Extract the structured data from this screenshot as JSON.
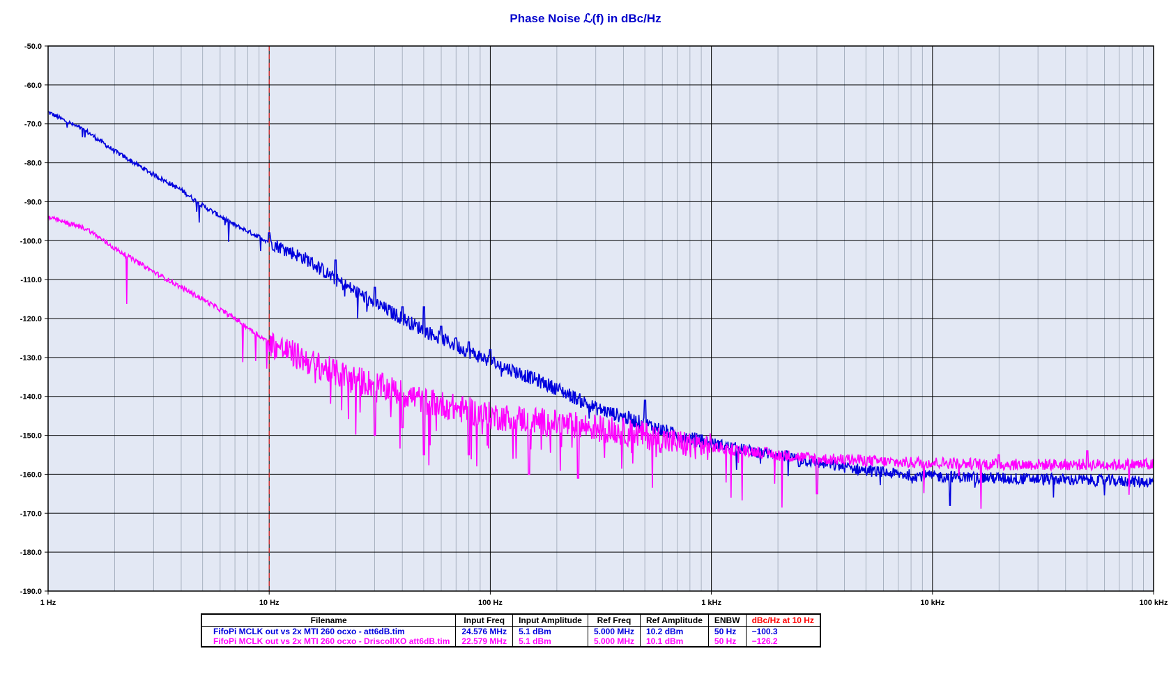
{
  "chart_data": {
    "type": "line",
    "title": "Phase Noise ℒ(f) in dBc/Hz",
    "x_scale": "log",
    "xlim": [
      1,
      100000
    ],
    "ylim": [
      -190,
      -50
    ],
    "y_ticks": [
      -50,
      -60,
      -70,
      -80,
      -90,
      -100,
      -110,
      -120,
      -130,
      -140,
      -150,
      -160,
      -170,
      -180,
      -190
    ],
    "y_tick_labels": [
      "-50.0",
      "-60.0",
      "-70.0",
      "-80.0",
      "-90.0",
      "-100.0",
      "-110.0",
      "-120.0",
      "-130.0",
      "-140.0",
      "-150.0",
      "-160.0",
      "-170.0",
      "-180.0",
      "-190.0"
    ],
    "x_ticks": [
      1,
      10,
      100,
      1000,
      10000,
      100000
    ],
    "x_tick_labels": [
      "1 Hz",
      "10 Hz",
      "100 Hz",
      "1 kHz",
      "10 kHz",
      "100 kHz"
    ],
    "grid": true,
    "background": "#e3e8f4",
    "marker_line": {
      "x": 10,
      "color": "#e02020",
      "style": "dashed"
    },
    "series": [
      {
        "color": "#0000dd",
        "points": [
          [
            1,
            -67
          ],
          [
            1.5,
            -72
          ],
          [
            2,
            -77
          ],
          [
            3,
            -83
          ],
          [
            4,
            -87
          ],
          [
            5,
            -91
          ],
          [
            7,
            -96
          ],
          [
            10,
            -100.3
          ],
          [
            15,
            -105
          ],
          [
            20,
            -110
          ],
          [
            30,
            -116
          ],
          [
            50,
            -123
          ],
          [
            70,
            -127
          ],
          [
            100,
            -131
          ],
          [
            150,
            -135
          ],
          [
            200,
            -138
          ],
          [
            300,
            -143
          ],
          [
            500,
            -147
          ],
          [
            700,
            -150
          ],
          [
            1000,
            -152
          ],
          [
            1500,
            -154
          ],
          [
            2000,
            -155
          ],
          [
            3000,
            -157
          ],
          [
            5000,
            -159
          ],
          [
            7000,
            -160
          ],
          [
            10000,
            -160.5
          ],
          [
            20000,
            -161
          ],
          [
            50000,
            -161.5
          ],
          [
            100000,
            -162
          ]
        ],
        "spurs": [
          [
            10,
            -98
          ],
          [
            20,
            -105
          ],
          [
            30,
            -112
          ],
          [
            40,
            -117
          ],
          [
            50,
            -117
          ],
          [
            60,
            -122
          ],
          [
            70,
            -125
          ],
          [
            80,
            -126
          ],
          [
            100,
            -128
          ],
          [
            500,
            -141
          ],
          [
            2500,
            -158
          ],
          [
            12000,
            -168
          ]
        ]
      },
      {
        "color": "#ff00ff",
        "points": [
          [
            1,
            -94
          ],
          [
            1.5,
            -97
          ],
          [
            2,
            -102
          ],
          [
            3,
            -108
          ],
          [
            4,
            -112
          ],
          [
            5,
            -115
          ],
          [
            7,
            -120
          ],
          [
            10,
            -126.2
          ],
          [
            15,
            -131
          ],
          [
            20,
            -134
          ],
          [
            30,
            -137
          ],
          [
            50,
            -141
          ],
          [
            70,
            -143
          ],
          [
            100,
            -145
          ],
          [
            150,
            -146
          ],
          [
            200,
            -147
          ],
          [
            300,
            -148
          ],
          [
            500,
            -150
          ],
          [
            700,
            -152
          ],
          [
            1000,
            -153
          ],
          [
            1500,
            -154
          ],
          [
            2000,
            -155
          ],
          [
            3000,
            -156
          ],
          [
            5000,
            -156.5
          ],
          [
            7000,
            -157
          ],
          [
            10000,
            -157
          ],
          [
            20000,
            -157.5
          ],
          [
            50000,
            -157.5
          ],
          [
            100000,
            -157.5
          ]
        ],
        "spurs": [
          [
            30,
            -150
          ],
          [
            40,
            -148
          ],
          [
            50,
            -155
          ],
          [
            80,
            -155
          ],
          [
            150,
            -160
          ],
          [
            250,
            -161
          ],
          [
            3000,
            -165
          ],
          [
            20000,
            -155
          ],
          [
            50000,
            -154
          ]
        ]
      }
    ]
  },
  "legend_table": {
    "headers": [
      "Filename",
      "Input Freq",
      "Input Amplitude",
      "Ref Freq",
      "Ref Amplitude",
      "ENBW",
      "dBc/Hz at 10 Hz"
    ],
    "rows": [
      {
        "color": "#0000dd",
        "cells": [
          "FifoPi MCLK out vs 2x  MTI 260 ocxo - att6dB.tim",
          "24.576 MHz",
          "5.1 dBm",
          "5.000 MHz",
          "10.2 dBm",
          "50 Hz",
          "−100.3"
        ]
      },
      {
        "color": "#ff00ff",
        "cells": [
          "FifoPi MCLK out vs 2x  MTI 260 ocxo - DriscollXO att6dB.tim",
          "22.579 MHz",
          "5.1 dBm",
          "5.000 MHz",
          "10.1 dBm",
          "50 Hz",
          "−126.2"
        ]
      }
    ]
  }
}
